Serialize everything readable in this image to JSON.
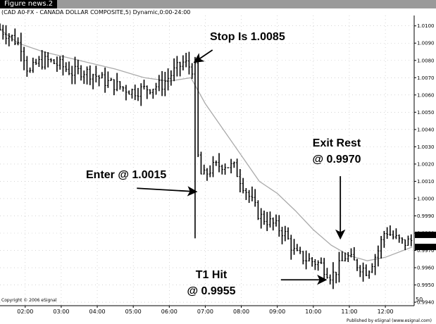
{
  "window": {
    "title": "Figure news.2"
  },
  "chart_header": "(CAD A0-FX - CANADA DOLLAR COMPOSITE,5) Dynamic,0:00-24:00",
  "copyright": "Copyright © 2006 eSignal",
  "publisher": "Published by eSignal (www.esignal.com)",
  "corner_icon": "50",
  "colors": {
    "bars": "#000000",
    "moving_average": "#aaaaaa",
    "grid": "#bbbbbb",
    "price_box": "#000000"
  },
  "chart_data": {
    "type": "ohlc",
    "title": "(CAD A0-FX - CANADA DOLLAR COMPOSITE,5) Dynamic,0:00-24:00",
    "x_ticks": [
      "02:00",
      "03:00",
      "04:00",
      "05:00",
      "06:00",
      "07:00",
      "08:00",
      "09:00",
      "10:00",
      "11:00",
      "12:00"
    ],
    "y_ticks": [
      "1.0100",
      "1.0090",
      "1.0080",
      "1.0070",
      "1.0060",
      "1.0050",
      "1.0040",
      "1.0030",
      "1.0020",
      "1.0010",
      "1.0000",
      "0.9990",
      "0.9980",
      "0.9970",
      "0.9960",
      "0.9950",
      "0.9940"
    ],
    "ylim": [
      0.9938,
      1.0106
    ],
    "xlim_hours": [
      1.3,
      12.8
    ],
    "grid": true,
    "y_axis_side": "right",
    "price_labels": [
      "0.9979",
      "0.9972"
    ],
    "series": [
      {
        "style": "ohlc-bars",
        "close_anchors": [
          [
            1.3,
            1.0098
          ],
          [
            1.6,
            1.0094
          ],
          [
            1.9,
            1.0088
          ],
          [
            2.1,
            1.0072
          ],
          [
            2.3,
            1.0078
          ],
          [
            2.6,
            1.008
          ],
          [
            3.0,
            1.0077
          ],
          [
            3.3,
            1.0073
          ],
          [
            3.6,
            1.0074
          ],
          [
            3.9,
            1.0072
          ],
          [
            4.2,
            1.0068
          ],
          [
            4.6,
            1.0065
          ],
          [
            5.0,
            1.0062
          ],
          [
            5.4,
            1.0064
          ],
          [
            5.8,
            1.0066
          ],
          [
            6.1,
            1.0073
          ],
          [
            6.4,
            1.0079
          ],
          [
            6.65,
            1.0075
          ],
          [
            6.75,
            1.003
          ],
          [
            6.9,
            1.0012
          ],
          [
            7.2,
            1.0018
          ],
          [
            7.5,
            1.002
          ],
          [
            7.8,
            1.0018
          ],
          [
            8.2,
            1.0002
          ],
          [
            8.5,
            0.999
          ],
          [
            8.9,
            0.9985
          ],
          [
            9.2,
            0.998
          ],
          [
            9.5,
            0.9968
          ],
          [
            9.8,
            0.9965
          ],
          [
            10.2,
            0.9962
          ],
          [
            10.5,
            0.9955
          ],
          [
            10.7,
            0.996
          ],
          [
            10.9,
            0.9967
          ],
          [
            11.2,
            0.9962
          ],
          [
            11.5,
            0.9958
          ],
          [
            11.8,
            0.997
          ],
          [
            12.0,
            0.9982
          ],
          [
            12.2,
            0.9978
          ],
          [
            12.5,
            0.9974
          ],
          [
            12.75,
            0.9976
          ]
        ]
      },
      {
        "name": "",
        "style": "moving-average",
        "points": [
          [
            1.3,
            1.0098
          ],
          [
            1.8,
            1.009
          ],
          [
            2.5,
            1.0085
          ],
          [
            3.5,
            1.008
          ],
          [
            4.5,
            1.0075
          ],
          [
            5.3,
            1.007
          ],
          [
            6.0,
            1.0068
          ],
          [
            6.6,
            1.007
          ],
          [
            7.0,
            1.0055
          ],
          [
            7.5,
            1.004
          ],
          [
            8.0,
            1.0025
          ],
          [
            8.5,
            1.001
          ],
          [
            9.0,
            1.0003
          ],
          [
            9.5,
            0.9993
          ],
          [
            10.0,
            0.9982
          ],
          [
            10.5,
            0.9973
          ],
          [
            11.0,
            0.9967
          ],
          [
            11.5,
            0.9964
          ],
          [
            12.0,
            0.9966
          ],
          [
            12.5,
            0.997
          ],
          [
            12.75,
            0.9972
          ]
        ]
      }
    ],
    "annotations": [
      {
        "text": "Stop Is 1.0085",
        "arrow_from": [
          7.2,
          1.0086
        ],
        "arrow_to": [
          6.7,
          1.0079
        ]
      },
      {
        "text": "Enter @ 1.0015",
        "arrow_from": [
          5.1,
          1.0006
        ],
        "arrow_to": [
          6.75,
          1.0004
        ]
      },
      {
        "line1": "Exit Rest",
        "line2": "@ 0.9970",
        "arrow_from": [
          10.75,
          1.0013
        ],
        "arrow_to": [
          10.75,
          0.9977
        ]
      },
      {
        "line1": "T1 Hit",
        "line2": "@ 0.9955",
        "arrow_from": [
          9.1,
          0.9953
        ],
        "arrow_to": [
          10.35,
          0.9953
        ]
      }
    ]
  }
}
